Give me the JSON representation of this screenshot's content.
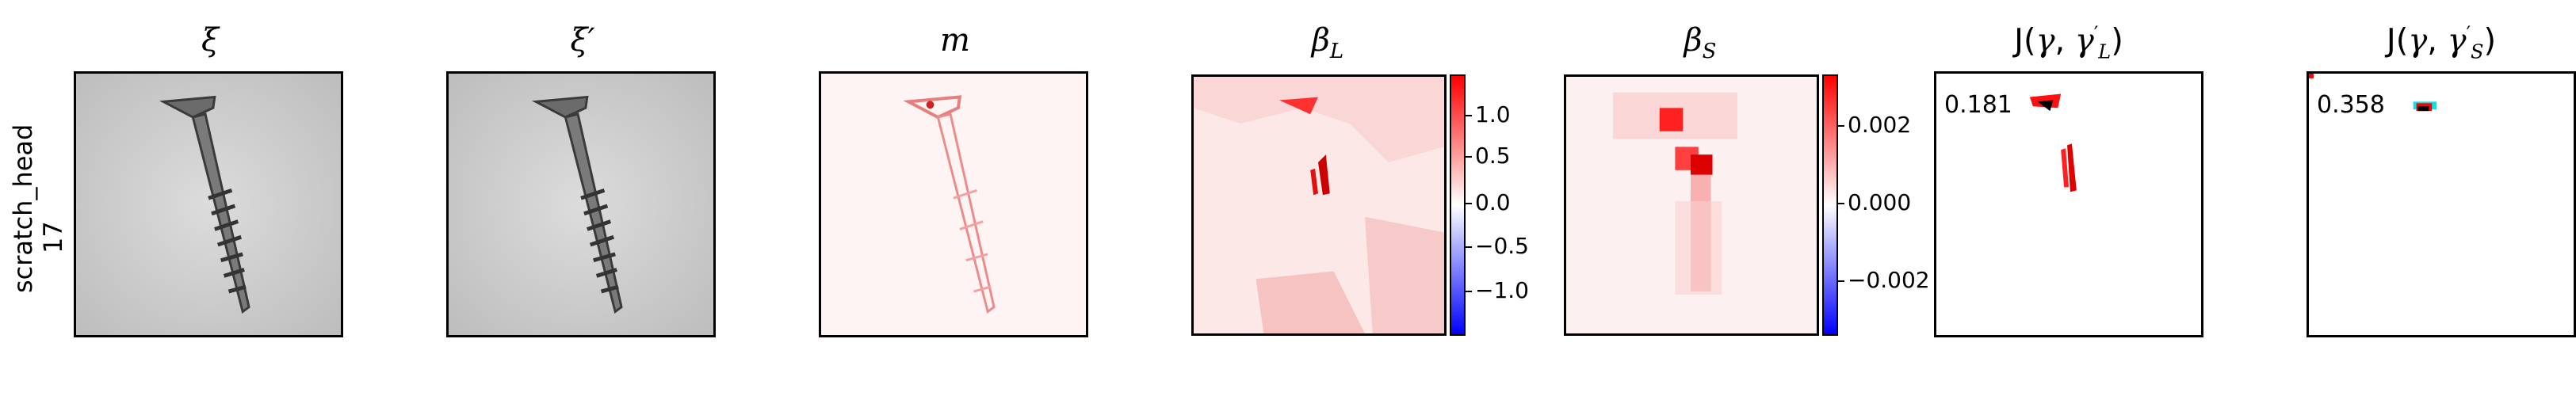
{
  "row_label": {
    "category": "scratch_head",
    "index": "17"
  },
  "panels": {
    "xi": {
      "title": "ξ"
    },
    "xi_prime": {
      "title": "ξ′"
    },
    "m": {
      "title": "m"
    },
    "beta_L": {
      "title": "β",
      "sub": "L"
    },
    "beta_S": {
      "title": "β",
      "sub": "S"
    },
    "J_L": {
      "title_prefix": "J(",
      "gamma": "γ",
      "sep": ", ",
      "gamma2": "γ",
      "prime": "′",
      "sub": "L",
      "close": ")",
      "score": "0.181"
    },
    "J_S": {
      "title_prefix": "J(",
      "gamma": "γ",
      "sep": ", ",
      "gamma2": "γ",
      "prime": "′",
      "sub": "S",
      "close": ")",
      "score": "0.358"
    }
  },
  "colorbar_L": {
    "ticks": [
      "1.0",
      "0.5",
      "0.0",
      "−0.5",
      "−1.0"
    ]
  },
  "colorbar_S": {
    "ticks": [
      "0.002",
      "0.000",
      "−0.002"
    ]
  },
  "colors": {
    "positive": "#ff0000",
    "negative": "#0000ff",
    "background": "#ffffff"
  }
}
